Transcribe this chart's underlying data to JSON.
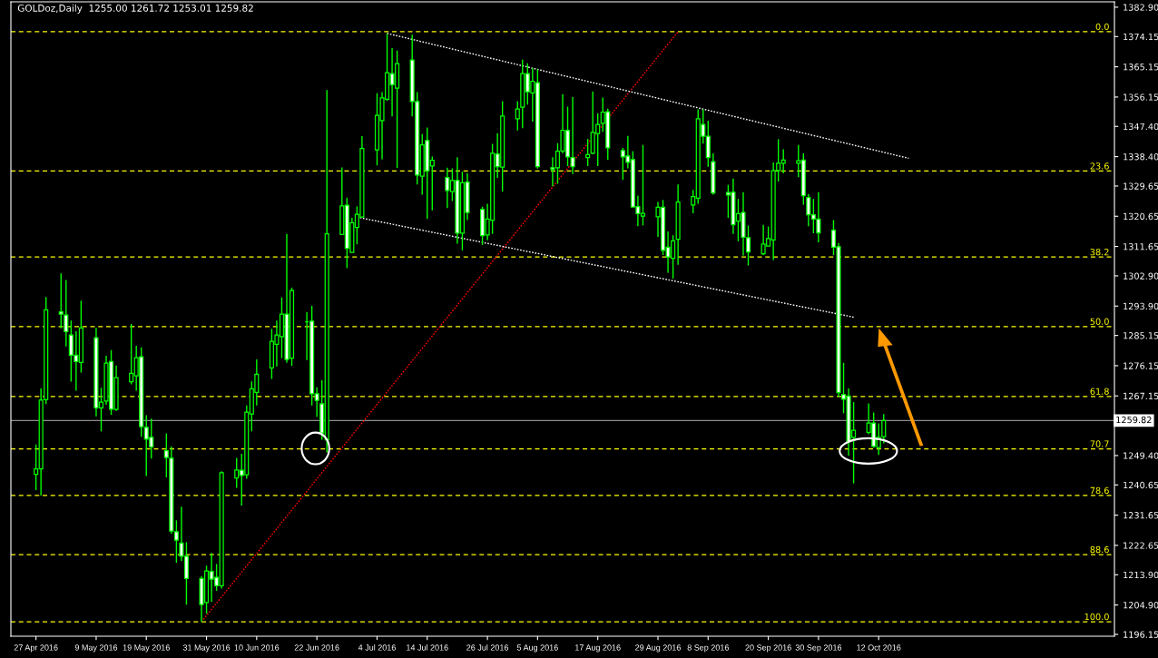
{
  "chart_data": {
    "type": "candlestick",
    "title": "GOLDoz,Daily  1255.00 1261.72 1253.01 1259.82",
    "x": [
      "2016-04-27",
      "2016-04-28",
      "2016-04-29",
      "2016-05-02",
      "2016-05-03",
      "2016-05-04",
      "2016-05-05",
      "2016-05-06",
      "2016-05-09",
      "2016-05-10",
      "2016-05-11",
      "2016-05-12",
      "2016-05-13",
      "2016-05-16",
      "2016-05-17",
      "2016-05-18",
      "2016-05-19",
      "2016-05-20",
      "2016-05-23",
      "2016-05-24",
      "2016-05-25",
      "2016-05-26",
      "2016-05-27",
      "2016-05-30",
      "2016-05-31",
      "2016-06-01",
      "2016-06-02",
      "2016-06-03",
      "2016-06-06",
      "2016-06-07",
      "2016-06-08",
      "2016-06-09",
      "2016-06-10",
      "2016-06-13",
      "2016-06-14",
      "2016-06-15",
      "2016-06-16",
      "2016-06-17",
      "2016-06-20",
      "2016-06-21",
      "2016-06-22",
      "2016-06-23",
      "2016-06-24",
      "2016-06-27",
      "2016-06-28",
      "2016-06-29",
      "2016-06-30",
      "2016-07-01",
      "2016-07-04",
      "2016-07-05",
      "2016-07-06",
      "2016-07-07",
      "2016-07-08",
      "2016-07-11",
      "2016-07-12",
      "2016-07-13",
      "2016-07-14",
      "2016-07-15",
      "2016-07-18",
      "2016-07-19",
      "2016-07-20",
      "2016-07-21",
      "2016-07-22",
      "2016-07-25",
      "2016-07-26",
      "2016-07-27",
      "2016-07-28",
      "2016-07-29",
      "2016-08-01",
      "2016-08-02",
      "2016-08-03",
      "2016-08-04",
      "2016-08-05",
      "2016-08-08",
      "2016-08-09",
      "2016-08-10",
      "2016-08-11",
      "2016-08-12",
      "2016-08-15",
      "2016-08-16",
      "2016-08-17",
      "2016-08-18",
      "2016-08-19",
      "2016-08-22",
      "2016-08-23",
      "2016-08-24",
      "2016-08-25",
      "2016-08-26",
      "2016-08-29",
      "2016-08-30",
      "2016-08-31",
      "2016-09-01",
      "2016-09-02",
      "2016-09-05",
      "2016-09-06",
      "2016-09-07",
      "2016-09-08",
      "2016-09-09",
      "2016-09-12",
      "2016-09-13",
      "2016-09-14",
      "2016-09-15",
      "2016-09-16",
      "2016-09-19",
      "2016-09-20",
      "2016-09-21",
      "2016-09-22",
      "2016-09-23",
      "2016-09-26",
      "2016-09-27",
      "2016-09-28",
      "2016-09-29",
      "2016-09-30",
      "2016-10-03",
      "2016-10-04",
      "2016-10-05",
      "2016-10-06",
      "2016-10-07",
      "2016-10-10",
      "2016-10-11",
      "2016-10-12",
      "2016-10-13"
    ],
    "series": [
      {
        "color": "#00ff00",
        "ohlc": [
          [
            1243.8,
            1252.7,
            1239.1,
            1245.4
          ],
          [
            1245.4,
            1269.4,
            1237.5,
            1265.9
          ],
          [
            1266.0,
            1296.6,
            1264.7,
            1292.8
          ],
          [
            1292.2,
            1303.6,
            1287.3,
            1291.5
          ],
          [
            1291.2,
            1301.7,
            1281.9,
            1286.3
          ],
          [
            1285.3,
            1289.6,
            1271.4,
            1279.3
          ],
          [
            1279.3,
            1286.4,
            1268.7,
            1277.4
          ],
          [
            1277.1,
            1295.5,
            1274.1,
            1287.4
          ],
          [
            1284.5,
            1287.4,
            1261.1,
            1263.6
          ],
          [
            1263.6,
            1269.6,
            1256.6,
            1265.3
          ],
          [
            1265.6,
            1279.1,
            1264.5,
            1276.9
          ],
          [
            1277.4,
            1280.8,
            1261.5,
            1263.2
          ],
          [
            1263.1,
            1276.2,
            1262.7,
            1272.6
          ],
          [
            1271.4,
            1288.6,
            1270.6,
            1273.9
          ],
          [
            1273.1,
            1282.1,
            1268.7,
            1278.5
          ],
          [
            1278.8,
            1281.6,
            1255.0,
            1258.0
          ],
          [
            1257.8,
            1261.4,
            1243.3,
            1254.3
          ],
          [
            1254.8,
            1260.4,
            1248.5,
            1252.0
          ],
          [
            1250.8,
            1256.0,
            1242.9,
            1248.8
          ],
          [
            1248.6,
            1252.1,
            1226.1,
            1226.9
          ],
          [
            1226.7,
            1230.1,
            1217.5,
            1224.2
          ],
          [
            1223.3,
            1234.2,
            1218.0,
            1219.4
          ],
          [
            1219.4,
            1223.6,
            1205.0,
            1212.8
          ],
          [
            1212.8,
            1213.5,
            1199.8,
            1205.0
          ],
          [
            1205.6,
            1216.6,
            1202.3,
            1215.0
          ],
          [
            1214.9,
            1220.4,
            1205.8,
            1212.6
          ],
          [
            1213.1,
            1217.1,
            1209.1,
            1210.6
          ],
          [
            1210.6,
            1244.7,
            1209.8,
            1244.3
          ],
          [
            1242.7,
            1248.7,
            1239.8,
            1245.1
          ],
          [
            1245.0,
            1249.9,
            1234.5,
            1243.5
          ],
          [
            1243.7,
            1264.3,
            1242.5,
            1262.3
          ],
          [
            1261.8,
            1271.5,
            1256.6,
            1269.3
          ],
          [
            1268.2,
            1278.0,
            1264.3,
            1273.6
          ],
          [
            1275.5,
            1287.1,
            1272.2,
            1283.4
          ],
          [
            1282.5,
            1289.6,
            1275.9,
            1285.3
          ],
          [
            1284.8,
            1296.5,
            1278.4,
            1291.5
          ],
          [
            1291.5,
            1315.4,
            1277.0,
            1278.0
          ],
          [
            1278.4,
            1299.4,
            1276.1,
            1298.5
          ],
          [
            1289.2,
            1292.1,
            1277.8,
            1289.2
          ],
          [
            1289.4,
            1294.0,
            1264.3,
            1267.8
          ],
          [
            1267.8,
            1269.7,
            1260.9,
            1265.8
          ],
          [
            1264.8,
            1271.8,
            1254.1,
            1256.1
          ],
          [
            1254.1,
            1358.2,
            1250.3,
            1315.4
          ],
          [
            1315.2,
            1335.2,
            1315.2,
            1323.7
          ],
          [
            1323.9,
            1326.2,
            1305.2,
            1311.1
          ],
          [
            1309.9,
            1320.2,
            1309.9,
            1318.7
          ],
          [
            1317.3,
            1323.6,
            1312.3,
            1321.2
          ],
          [
            1320.4,
            1344.5,
            1320.2,
            1340.8
          ],
          [
            1340.4,
            1357.3,
            1335.8,
            1350.7
          ],
          [
            1349.1,
            1357.6,
            1337.6,
            1355.9
          ],
          [
            1355.5,
            1375.0,
            1355.0,
            1363.4
          ],
          [
            1363.1,
            1370.7,
            1350.4,
            1359.8
          ],
          [
            1358.8,
            1370.0,
            1335.0,
            1366.1
          ],
          [
            1367.2,
            1374.7,
            1350.4,
            1354.8
          ],
          [
            1354.8,
            1357.6,
            1330.1,
            1332.9
          ],
          [
            1332.6,
            1345.1,
            1327.1,
            1341.9
          ],
          [
            1343.2,
            1347.1,
            1319.9,
            1334.2
          ],
          [
            1335.6,
            1338.4,
            1322.4,
            1337.3
          ],
          [
            1332.2,
            1335.1,
            1323.1,
            1328.3
          ],
          [
            1328.0,
            1334.9,
            1325.2,
            1331.3
          ],
          [
            1331.3,
            1338.2,
            1312.5,
            1315.6
          ],
          [
            1315.6,
            1333.9,
            1310.5,
            1330.6
          ],
          [
            1330.8,
            1333.5,
            1319.5,
            1321.8
          ],
          [
            1322.7,
            1323.5,
            1312.1,
            1314.9
          ],
          [
            1315.1,
            1324.4,
            1313.5,
            1319.8
          ],
          [
            1319.5,
            1342.2,
            1315.4,
            1339.4
          ],
          [
            1339.2,
            1345.4,
            1332.1,
            1335.4
          ],
          [
            1335.3,
            1354.9,
            1328.0,
            1350.5
          ],
          [
            1349.7,
            1354.9,
            1346.2,
            1352.6
          ],
          [
            1353.1,
            1367.3,
            1346.9,
            1363.1
          ],
          [
            1363.1,
            1366.2,
            1353.9,
            1357.7
          ],
          [
            1357.4,
            1364.8,
            1348.8,
            1360.8
          ],
          [
            1360.4,
            1364.4,
            1334.8,
            1335.4
          ],
          [
            1335.1,
            1338.2,
            1329.6,
            1334.6
          ],
          [
            1335.1,
            1342.4,
            1330.3,
            1340.0
          ],
          [
            1340.1,
            1357.0,
            1339.4,
            1346.2
          ],
          [
            1346.2,
            1353.3,
            1335.6,
            1338.3
          ],
          [
            1338.1,
            1356.1,
            1333.2,
            1335.4
          ],
          [
            1338.1,
            1343.7,
            1335.6,
            1339.0
          ],
          [
            1339.4,
            1357.8,
            1339.1,
            1345.6
          ],
          [
            1345.3,
            1351.3,
            1335.6,
            1348.0
          ],
          [
            1348.3,
            1356.0,
            1345.8,
            1351.6
          ],
          [
            1351.8,
            1352.7,
            1337.5,
            1341.0
          ],
          [
            1340.2,
            1341.0,
            1331.5,
            1338.3
          ],
          [
            1338.6,
            1344.6,
            1334.9,
            1336.7
          ],
          [
            1337.5,
            1340.0,
            1323.4,
            1323.4
          ],
          [
            1323.5,
            1326.8,
            1317.7,
            1321.4
          ],
          [
            1320.7,
            1341.9,
            1317.9,
            1321.5
          ],
          [
            1320.5,
            1324.9,
            1314.5,
            1323.3
          ],
          [
            1323.3,
            1325.5,
            1309.1,
            1310.5
          ],
          [
            1311.4,
            1316.1,
            1303.8,
            1308.5
          ],
          [
            1308.1,
            1315.0,
            1302.1,
            1313.3
          ],
          [
            1313.8,
            1330.1,
            1306.2,
            1324.9
          ],
          [
            1324.0,
            1328.5,
            1321.5,
            1326.5
          ],
          [
            1326.0,
            1352.5,
            1324.4,
            1349.7
          ],
          [
            1348.0,
            1352.5,
            1342.3,
            1344.5
          ],
          [
            1344.5,
            1349.1,
            1335.4,
            1338.1
          ],
          [
            1336.9,
            1339.4,
            1327.1,
            1327.6
          ],
          [
            1327.7,
            1330.0,
            1320.2,
            1327.0
          ],
          [
            1327.8,
            1331.9,
            1315.4,
            1318.1
          ],
          [
            1319.2,
            1325.8,
            1313.2,
            1321.4
          ],
          [
            1321.8,
            1327.8,
            1309.0,
            1314.4
          ],
          [
            1314.3,
            1317.9,
            1306.0,
            1310.0
          ],
          [
            1309.5,
            1318.1,
            1309.1,
            1312.4
          ],
          [
            1311.8,
            1317.6,
            1311.8,
            1314.0
          ],
          [
            1313.6,
            1336.7,
            1307.6,
            1334.2
          ],
          [
            1334.3,
            1343.6,
            1331.0,
            1336.4
          ],
          [
            1336.4,
            1340.6,
            1333.4,
            1337.4
          ],
          [
            1336.4,
            1341.9,
            1332.3,
            1337.2
          ],
          [
            1337.4,
            1339.4,
            1324.1,
            1326.8
          ],
          [
            1326.2,
            1327.3,
            1317.7,
            1321.1
          ],
          [
            1321.1,
            1325.8,
            1315.6,
            1319.8
          ],
          [
            1319.8,
            1327.8,
            1312.9,
            1315.7
          ],
          [
            1316.5,
            1319.5,
            1309.1,
            1311.4
          ],
          [
            1311.6,
            1312.7,
            1266.9,
            1268.1
          ],
          [
            1267.6,
            1277.0,
            1262.0,
            1266.2
          ],
          [
            1267.1,
            1269.4,
            1249.4,
            1253.5
          ],
          [
            1254.8,
            1265.3,
            1241.1,
            1256.9
          ],
          [
            1256.3,
            1264.9,
            1255.7,
            1259.1
          ],
          [
            1259.1,
            1262.2,
            1251.7,
            1252.1
          ],
          [
            1251.8,
            1259.0,
            1249.6,
            1254.8
          ],
          [
            1255.0,
            1261.72,
            1253.01,
            1259.82
          ]
        ]
      },
      {
        "type": "line",
        "color": "#ff0000",
        "line_style": "dotted",
        "x": [
          "2016-05-30",
          "2016-09-02"
        ],
        "values": [
          1199.9,
          1375.6
        ]
      },
      {
        "type": "line",
        "color": "#ffffff",
        "line_style": "dotted",
        "x": [
          "2016-07-06",
          "2016-10-18"
        ],
        "values": [
          1375.1,
          1337.9
        ]
      },
      {
        "type": "line",
        "color": "#ffffff",
        "line_style": "dotted",
        "x": [
          "2016-06-30",
          "2016-10-07"
        ],
        "values": [
          1320.4,
          1290.6
        ]
      }
    ],
    "ref_lines": [
      {
        "axis": "y",
        "value": 1375.6,
        "color": "#ffff00",
        "line_style": "dashed"
      },
      {
        "axis": "y",
        "value": 1334.1,
        "color": "#ffff00",
        "line_style": "dashed"
      },
      {
        "axis": "y",
        "value": 1308.5,
        "color": "#ffff00",
        "line_style": "dashed"
      },
      {
        "axis": "y",
        "value": 1287.8,
        "color": "#ffff00",
        "line_style": "dashed"
      },
      {
        "axis": "y",
        "value": 1267.0,
        "color": "#ffff00",
        "line_style": "dashed"
      },
      {
        "axis": "y",
        "value": 1251.4,
        "color": "#ffff00",
        "line_style": "dashed"
      },
      {
        "axis": "y",
        "value": 1237.5,
        "color": "#ffff00",
        "line_style": "dashed"
      },
      {
        "axis": "y",
        "value": 1219.9,
        "color": "#ffff00",
        "line_style": "dashed"
      },
      {
        "axis": "y",
        "value": 1199.9,
        "color": "#ffff00",
        "line_style": "dashed"
      },
      {
        "axis": "y",
        "value": 1259.82,
        "label": "1259.82",
        "color": "#8c8c8c",
        "line_style": "solid"
      }
    ],
    "annotations": [
      {
        "text": "0.0",
        "x": "2016-11-27",
        "y": 1375.6
      },
      {
        "text": "23.6",
        "x": "2016-11-27",
        "y": 1334.1
      },
      {
        "text": "38.2",
        "x": "2016-11-27",
        "y": 1308.5
      },
      {
        "text": "50.0",
        "x": "2016-11-27",
        "y": 1287.8
      },
      {
        "text": "61.8",
        "x": "2016-11-27",
        "y": 1267.0
      },
      {
        "text": "70.7",
        "x": "2016-11-27",
        "y": 1251.4
      },
      {
        "text": "78.6",
        "x": "2016-11-27",
        "y": 1237.5
      },
      {
        "text": "88.6",
        "x": "2016-11-27",
        "y": 1219.9
      },
      {
        "text": "100.0",
        "x": "2016-11-27",
        "y": 1199.9
      }
    ],
    "xlim": [
      "2016-04-22",
      "2016-11-28"
    ],
    "xticks": [
      {
        "value": "2016-04-27",
        "label": "27 Apr 2016"
      },
      {
        "value": "2016-05-09",
        "label": "9 May 2016"
      },
      {
        "value": "2016-05-19",
        "label": "19 May 2016"
      },
      {
        "value": "2016-05-31",
        "label": "31 May 2016"
      },
      {
        "value": "2016-06-10",
        "label": "10 Jun 2016"
      },
      {
        "value": "2016-06-22",
        "label": "22 Jun 2016"
      },
      {
        "value": "2016-07-04",
        "label": "4 Jul 2016"
      },
      {
        "value": "2016-07-14",
        "label": "14 Jul 2016"
      },
      {
        "value": "2016-07-26",
        "label": "26 Jul 2016"
      },
      {
        "value": "2016-08-05",
        "label": "5 Aug 2016"
      },
      {
        "value": "2016-08-17",
        "label": "17 Aug 2016"
      },
      {
        "value": "2016-08-29",
        "label": "29 Aug 2016"
      },
      {
        "value": "2016-09-08",
        "label": "8 Sep 2016"
      },
      {
        "value": "2016-09-20",
        "label": "20 Sep 2016"
      },
      {
        "value": "2016-09-30",
        "label": "30 Sep 2016"
      },
      {
        "value": "2016-10-12",
        "label": "12 Oct 2016"
      }
    ],
    "ylim": [
      1195.6,
      1384.5
    ],
    "yticks": [
      {
        "value": 1382.9,
        "label": "1382.90"
      },
      {
        "value": 1374.15,
        "label": "1374.15"
      },
      {
        "value": 1365.15,
        "label": "1365.15"
      },
      {
        "value": 1356.15,
        "label": "1356.15"
      },
      {
        "value": 1347.4,
        "label": "1347.40"
      },
      {
        "value": 1338.4,
        "label": "1338.40"
      },
      {
        "value": 1329.65,
        "label": "1329.65"
      },
      {
        "value": 1320.65,
        "label": "1320.65"
      },
      {
        "value": 1311.65,
        "label": "1311.65"
      },
      {
        "value": 1302.9,
        "label": "1302.90"
      },
      {
        "value": 1293.9,
        "label": "1293.90"
      },
      {
        "value": 1285.15,
        "label": "1285.15"
      },
      {
        "value": 1276.15,
        "label": "1276.15"
      },
      {
        "value": 1267.15,
        "label": "1267.15"
      },
      {
        "value": 1249.4,
        "label": "1249.40"
      },
      {
        "value": 1240.65,
        "label": "1240.65"
      },
      {
        "value": 1231.65,
        "label": "1231.65"
      },
      {
        "value": 1222.65,
        "label": "1222.65"
      },
      {
        "value": 1213.9,
        "label": "1213.90"
      },
      {
        "value": 1204.9,
        "label": "1204.90"
      },
      {
        "value": 1196.15,
        "label": "1196.15"
      }
    ],
    "grid": false,
    "legend": false
  }
}
